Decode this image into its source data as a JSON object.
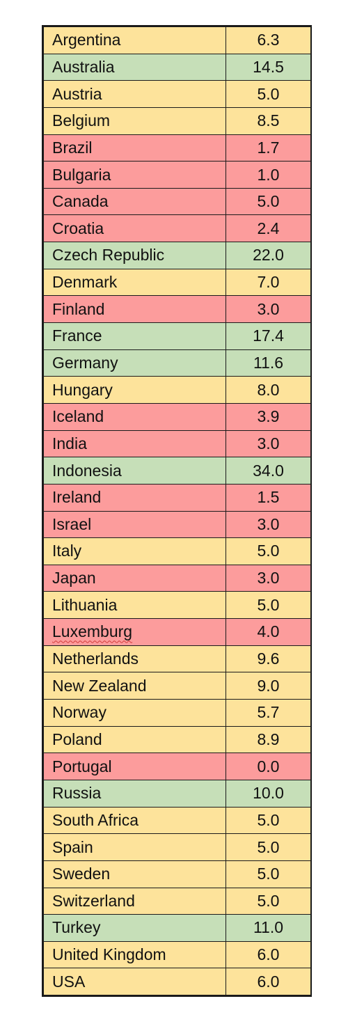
{
  "colors": {
    "yellow": "#fde39b",
    "green": "#c6dfb8",
    "red": "#fc9c9c",
    "border": "#1a1a1a"
  },
  "rows": [
    {
      "country": "Argentina",
      "value": "6.3",
      "color": "yellow"
    },
    {
      "country": "Australia",
      "value": "14.5",
      "color": "green"
    },
    {
      "country": "Austria",
      "value": "5.0",
      "color": "yellow"
    },
    {
      "country": "Belgium",
      "value": "8.5",
      "color": "yellow"
    },
    {
      "country": "Brazil",
      "value": "1.7",
      "color": "red"
    },
    {
      "country": "Bulgaria",
      "value": "1.0",
      "color": "red"
    },
    {
      "country": "Canada",
      "value": "5.0",
      "color": "red"
    },
    {
      "country": "Croatia",
      "value": "2.4",
      "color": "red"
    },
    {
      "country": "Czech Republic",
      "value": "22.0",
      "color": "green"
    },
    {
      "country": "Denmark",
      "value": "7.0",
      "color": "yellow"
    },
    {
      "country": "Finland",
      "value": "3.0",
      "color": "red"
    },
    {
      "country": "France",
      "value": "17.4",
      "color": "green"
    },
    {
      "country": "Germany",
      "value": "11.6",
      "color": "green"
    },
    {
      "country": "Hungary",
      "value": "8.0",
      "color": "yellow"
    },
    {
      "country": "Iceland",
      "value": "3.9",
      "color": "red"
    },
    {
      "country": "India",
      "value": "3.0",
      "color": "red"
    },
    {
      "country": "Indonesia",
      "value": "34.0",
      "color": "green"
    },
    {
      "country": "Ireland",
      "value": "1.5",
      "color": "red"
    },
    {
      "country": "Israel",
      "value": "3.0",
      "color": "red"
    },
    {
      "country": "Italy",
      "value": "5.0",
      "color": "yellow"
    },
    {
      "country": "Japan",
      "value": "3.0",
      "color": "red"
    },
    {
      "country": "Lithuania",
      "value": "5.0",
      "color": "yellow"
    },
    {
      "country": "Luxemburg",
      "value": "4.0",
      "color": "red",
      "spellcheck_flag": true
    },
    {
      "country": "Netherlands",
      "value": "9.6",
      "color": "yellow"
    },
    {
      "country": "New Zealand",
      "value": "9.0",
      "color": "yellow"
    },
    {
      "country": "Norway",
      "value": "5.7",
      "color": "yellow"
    },
    {
      "country": "Poland",
      "value": "8.9",
      "color": "yellow"
    },
    {
      "country": "Portugal",
      "value": "0.0",
      "color": "red"
    },
    {
      "country": "Russia",
      "value": "10.0",
      "color": "green"
    },
    {
      "country": "South Africa",
      "value": "5.0",
      "color": "yellow"
    },
    {
      "country": "Spain",
      "value": "5.0",
      "color": "yellow"
    },
    {
      "country": "Sweden",
      "value": "5.0",
      "color": "yellow"
    },
    {
      "country": "Switzerland",
      "value": "5.0",
      "color": "yellow"
    },
    {
      "country": "Turkey",
      "value": "11.0",
      "color": "green"
    },
    {
      "country": "United Kingdom",
      "value": "6.0",
      "color": "yellow"
    },
    {
      "country": "USA",
      "value": "6.0",
      "color": "yellow"
    }
  ]
}
